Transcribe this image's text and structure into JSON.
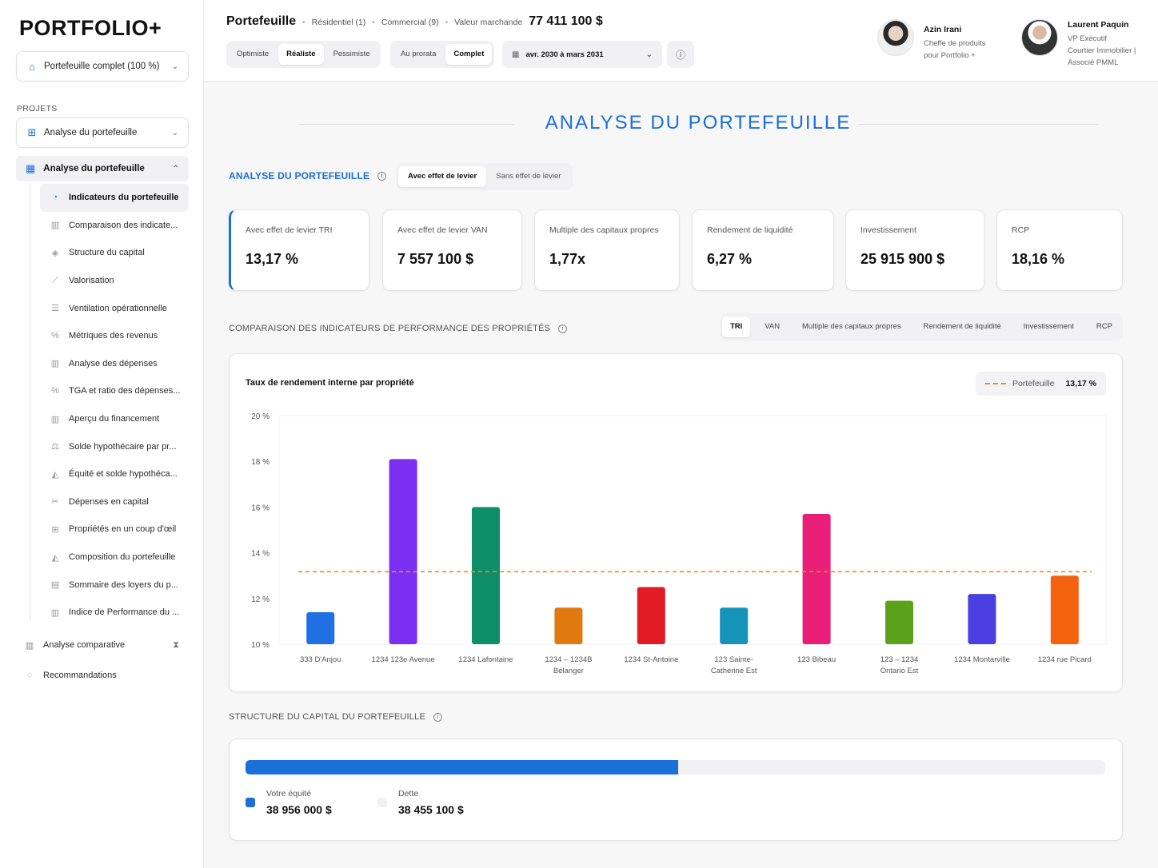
{
  "sidebar": {
    "logo": "PORTFOLIO+",
    "portfolio_select": "Portefeuille complet (100 %)",
    "projects_label": "PROJETS",
    "project_select": "Analyse du portefeuille",
    "group_label": "Analyse du portefeuille",
    "items": [
      {
        "label": "Indicateurs du portefeuille",
        "icon": "pie-chart-icon"
      },
      {
        "label": "Comparaison des indicate...",
        "icon": "bar-chart-icon"
      },
      {
        "label": "Structure du capital",
        "icon": "layers-icon"
      },
      {
        "label": "Valorisation",
        "icon": "line-chart-icon"
      },
      {
        "label": "Ventilation opérationnelle",
        "icon": "list-icon"
      },
      {
        "label": "Métriques des revenus",
        "icon": "percent-icon"
      },
      {
        "label": "Analyse des dépenses",
        "icon": "bar-chart-icon"
      },
      {
        "label": "TGA et ratio des dépenses...",
        "icon": "percent-icon"
      },
      {
        "label": "Aperçu du financement",
        "icon": "bar-chart-icon"
      },
      {
        "label": "Solde hypothécaire par pr...",
        "icon": "scale-icon"
      },
      {
        "label": "Équité et solde hypothéca...",
        "icon": "area-chart-icon"
      },
      {
        "label": "Dépenses en capital",
        "icon": "tools-icon"
      },
      {
        "label": "Propriétés en un coup d'œil",
        "icon": "grid-icon"
      },
      {
        "label": "Composition du portefeuille",
        "icon": "area-chart-icon"
      },
      {
        "label": "Sommaire des loyers du p...",
        "icon": "document-icon"
      },
      {
        "label": "Indice de Performance du ...",
        "icon": "bar-chart-icon"
      }
    ],
    "comparative": "Analyse comparative",
    "recommendations": "Recommandations"
  },
  "header": {
    "title": "Portefeuille",
    "residential": "Résidentiel (1)",
    "commercial": "Commercial (9)",
    "market_label": "Valeur marchande",
    "market_value": "77 411 100 $",
    "scenarios": [
      "Optimiste",
      "Réaliste",
      "Pessimiste"
    ],
    "modes": [
      "Au prorata",
      "Complet"
    ],
    "date_range": "avr. 2030 à mars 2031",
    "people": [
      {
        "name": "Azin Irani",
        "line1": "Cheffe de produits",
        "line2": "pour Portfolio +",
        "line3": ""
      },
      {
        "name": "Laurent Paquin",
        "line1": "VP Exécutif",
        "line2": "Courtier Immobilier |",
        "line3": "Associé PMML"
      }
    ]
  },
  "main": {
    "title": "ANALYSE DU PORTEFEUILLE",
    "section1": "ANALYSE DU PORTEFEUILLE",
    "leverage": [
      "Avec effet de levier",
      "Sans effet de levier"
    ],
    "kpis": [
      {
        "label": "Avec effet de levier TRI",
        "value": "13,17 %"
      },
      {
        "label": "Avec effet de levier VAN",
        "value": "7 557 100 $"
      },
      {
        "label": "Multiple des capitaux propres",
        "value": "1,77x"
      },
      {
        "label": "Rendement de liquidité",
        "value": "6,27 %"
      },
      {
        "label": "Investissement",
        "value": "25 915 900 $"
      },
      {
        "label": "RCP",
        "value": "18,16 %"
      }
    ],
    "section2": "COMPARAISON DES INDICATEURS DE PERFORMANCE DES PROPRIÉTÉS",
    "metric_tabs": [
      "TRI",
      "VAN",
      "Multiple des capitaux propres",
      "Rendement de liquidité",
      "Investissement",
      "RCP"
    ],
    "section3": "STRUCTURE DU CAPITAL DU PORTEFEUILLE",
    "equity_label": "Votre équité",
    "equity_value": "38 956 000 $",
    "debt_label": "Dette",
    "debt_value": "38 455 100 $",
    "equity_fraction": 0.5032,
    "equity_color": "#1a6fd8",
    "debt_color": "#f1f1f3"
  },
  "chart_data": {
    "type": "bar",
    "title": "Taux de rendement interne par propriété",
    "categories": [
      [
        "333 D'Anjou"
      ],
      [
        "1234 123e Avenue"
      ],
      [
        "1234 Lafontaine"
      ],
      [
        "1234 – 1234B",
        "Bélanger"
      ],
      [
        "1234 St-Antoine"
      ],
      [
        "123 Sainte-",
        "Catherine Est"
      ],
      [
        "123 Bibeau"
      ],
      [
        "123 – 1234",
        "Ontario Est"
      ],
      [
        "1234 Montarville"
      ],
      [
        "1234 rue Picard"
      ]
    ],
    "values": [
      11.4,
      18.1,
      16.0,
      11.6,
      12.5,
      11.6,
      15.7,
      11.9,
      12.2,
      13.0
    ],
    "colors": [
      "#1f6fe5",
      "#7b2ff2",
      "#0e8f6a",
      "#e07a10",
      "#e01b24",
      "#1693b9",
      "#e81e78",
      "#5aa21a",
      "#4a3fe0",
      "#f2620f"
    ],
    "ylim": [
      10,
      20
    ],
    "yticks": [
      10,
      12,
      14,
      16,
      18,
      20
    ],
    "ytick_labels": [
      "10 %",
      "12 %",
      "14 %",
      "16 %",
      "18 %",
      "20 %"
    ],
    "reference": {
      "name": "Portefeuille",
      "value": 13.17,
      "label": "13,17 %",
      "color": "#f08a1c"
    },
    "legend_position": "top-right",
    "grid": false
  }
}
